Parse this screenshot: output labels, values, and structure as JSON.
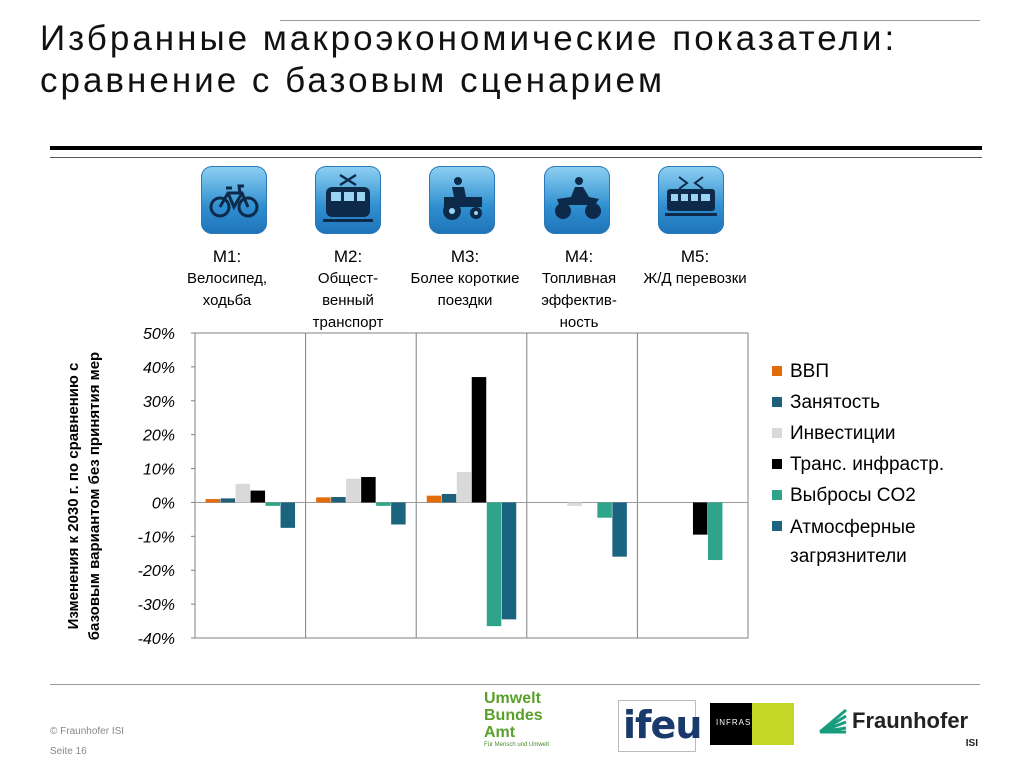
{
  "slide": {
    "title": "Избранные макроэкономические показатели: сравнение с базовым сценарием",
    "copyright": "© Fraunhofer ISI",
    "page": "Seite 16"
  },
  "measures": [
    {
      "code": "M1:",
      "name": "Велосипед, ходьба",
      "icon": "bicycle-icon"
    },
    {
      "code": "M2:",
      "name": "Общест-венный транспорт",
      "icon": "tram-icon"
    },
    {
      "code": "M3:",
      "name": "Более короткие поездки",
      "icon": "tractor-icon"
    },
    {
      "code": "M4:",
      "name": "Топливная эффектив-ность",
      "icon": "quad-bike-icon"
    },
    {
      "code": "M5:",
      "name": "Ж/Д перевозки",
      "icon": "train-icon"
    }
  ],
  "logos": {
    "uba_lines": [
      "Umwelt",
      "Bundes",
      "Amt"
    ],
    "uba_sub": "Für Mensch und Umwelt",
    "ifeu": "ifeu",
    "infras": "INFRAS",
    "fraunhofer": "Fraunhofer",
    "fraunhofer_sub": "ISI"
  },
  "chart_data": {
    "type": "bar",
    "ylabel": "Изменения к 2030 г. по сравнению с базовым вариантом без принятия мер",
    "ylim": [
      -40,
      50
    ],
    "yticks": [
      "50%",
      "40%",
      "30%",
      "20%",
      "10%",
      "0%",
      "-10%",
      "-20%",
      "-30%",
      "-40%"
    ],
    "categories": [
      "M1",
      "M2",
      "M3",
      "M4",
      "M5"
    ],
    "series": [
      {
        "name": "ВВП",
        "color": "#e36c0a",
        "values": [
          1,
          1.5,
          2,
          0,
          0
        ]
      },
      {
        "name": "Занятость",
        "color": "#1f5f7a",
        "values": [
          1.2,
          1.6,
          2.5,
          0,
          0
        ]
      },
      {
        "name": "Инвестиции",
        "color": "#d9d9d9",
        "values": [
          5.5,
          7,
          9,
          -1,
          0
        ]
      },
      {
        "name": "Транс. инфрастр.",
        "color": "#000000",
        "values": [
          3.5,
          7.5,
          37,
          0,
          -9.5
        ]
      },
      {
        "name": "Выбросы CO2",
        "color": "#2ea58a",
        "values": [
          -1,
          -1,
          -36.5,
          -4.5,
          -17
        ]
      },
      {
        "name": "Атмосферные загрязнители",
        "color": "#1b6480",
        "values": [
          -7.5,
          -6.5,
          -34.5,
          -16,
          0
        ]
      }
    ],
    "grid": true,
    "legend": "right"
  }
}
